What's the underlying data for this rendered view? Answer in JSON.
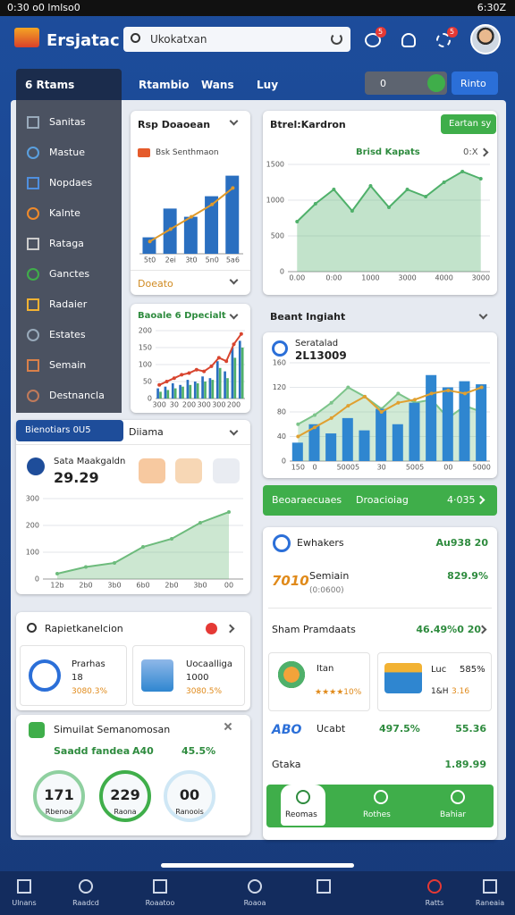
{
  "status": {
    "left": "0:30 o0 lmlso0",
    "right": "6:30Z"
  },
  "header": {
    "app_name": "Ersjatac",
    "search_placeholder": "Ukokatxan",
    "notifications": "5",
    "alerts": "5"
  },
  "nav": {
    "menu": "6 Rtams",
    "tabs": [
      "Rtambio",
      "Wans",
      "Luy"
    ],
    "toggle": "0",
    "action": "Rinto"
  },
  "sidebar": [
    "Sanitas",
    "Mastue",
    "Nopdaes",
    "Kalnte",
    "Rataga",
    "Ganctes",
    "Radaier",
    "Estates",
    "Semain",
    "Destnancla"
  ],
  "report_card": {
    "footer": "Doeato"
  },
  "trend_card": {
    "button": "Eartan sy",
    "range": "0:X"
  },
  "insight": {
    "heading": "Beant Ingiaht"
  },
  "summary_tabs": {
    "active": "Bienotiars 0U5",
    "other": "Diiama"
  },
  "banner": {
    "left": "Beoaraecuaes",
    "middle": "Droacioiag",
    "right": "4·035"
  },
  "list_card": {
    "header_label": "Ewhakers",
    "header_value": "Au938 20",
    "code": "7010",
    "item_name": "Semiain",
    "item_sub": "(0:0600)",
    "item_value": "829.9%",
    "section": "Sham Pramdaats",
    "section_value": "46.49%0 20",
    "tiles": [
      {
        "name": "Itan",
        "rating": "★★★★10%"
      },
      {
        "name": "Luc",
        "percent": "585%",
        "code": "1&H",
        "value": "3.16"
      }
    ],
    "brand": "ABO",
    "brand_name": "Ucabt",
    "brand_percent": "497.5%",
    "brand_value": "55.36",
    "total_label": "Gtaka",
    "total_value": "1.89.99",
    "actions": [
      "Reomas",
      "Rothes",
      "Bahiar"
    ]
  },
  "product_card": {
    "title": "Rapietkanelcion",
    "tiles": [
      {
        "name": "Prarhas",
        "count": "18",
        "change": "3080.3%"
      },
      {
        "name": "Uocaalliga",
        "count": "1000",
        "change": "3080.5%"
      }
    ]
  },
  "sim_card": {
    "title": "Simuilat Semanomosan",
    "metric": "Saadd fandea",
    "metric_value": "A40",
    "metric_percent": "45.5%",
    "gauges": [
      {
        "value": "171",
        "label": "Rbenoa"
      },
      {
        "value": "229",
        "label": "Raona"
      },
      {
        "value": "00",
        "label": "Ranoois"
      }
    ]
  },
  "bottom_nav": [
    "Ulnans",
    "Raadcd",
    "Roaatoo",
    "Roaoa",
    "Ratts",
    "Raneaia"
  ],
  "chart_data": [
    {
      "type": "combo",
      "title": "Rsp Doaoean",
      "subtitle": "Bsk Senthmaon",
      "categories": [
        "5t0",
        "2ei",
        "3t0",
        "5n0",
        "5a6"
      ],
      "series": [
        {
          "type": "bar",
          "color": "#2a6fc0",
          "values": [
            20,
            55,
            45,
            70,
            95
          ]
        },
        {
          "type": "line",
          "color": "#e09a2a",
          "values": [
            15,
            30,
            45,
            60,
            80
          ]
        }
      ],
      "ylim": [
        0,
        100
      ]
    },
    {
      "type": "combo",
      "title": "Btrel:Kardron",
      "subtitle": "Brisd Kapats",
      "categories": [
        "0.00",
        null,
        "0:00",
        null,
        "1000",
        null,
        "3000",
        null,
        "4000",
        null,
        "3000"
      ],
      "series": [
        {
          "type": "area",
          "color": "#4fb06a",
          "values": [
            700,
            950,
            1150,
            850,
            1200,
            900,
            1150,
            1050,
            1250,
            1400,
            1300
          ]
        }
      ],
      "ylim": [
        0,
        1500
      ],
      "yticks": [
        0,
        500,
        1000,
        1500
      ]
    },
    {
      "type": "combo",
      "title": "Baoale 6 Dpecialt",
      "categories": [
        "300",
        null,
        "30",
        null,
        "200",
        null,
        "300",
        null,
        "300",
        null,
        "200",
        null
      ],
      "series": [
        {
          "type": "bar",
          "color": "#2a6fc0",
          "values": [
            30,
            35,
            45,
            40,
            55,
            50,
            65,
            60,
            110,
            80,
            150,
            170
          ]
        },
        {
          "type": "bar",
          "color": "#4fb06a",
          "values": [
            20,
            25,
            30,
            35,
            40,
            45,
            50,
            55,
            90,
            60,
            120,
            150
          ]
        },
        {
          "type": "line",
          "color": "#d8452f",
          "values": [
            40,
            50,
            60,
            70,
            75,
            85,
            80,
            95,
            120,
            110,
            160,
            190
          ]
        }
      ],
      "ylim": [
        0,
        200
      ],
      "yticks": [
        0,
        50,
        100,
        150,
        200
      ]
    },
    {
      "type": "combo",
      "title": "Seratalad",
      "value": "2L13009",
      "categories": [
        "150",
        "0",
        null,
        "50005",
        null,
        "30",
        null,
        "5005",
        null,
        "00",
        null,
        "5000"
      ],
      "series": [
        {
          "type": "area",
          "color": "#7cc48a",
          "values": [
            60,
            75,
            95,
            120,
            105,
            85,
            110,
            95,
            100,
            70,
            90,
            80
          ]
        },
        {
          "type": "bar",
          "color": "#2f86d0",
          "values": [
            30,
            60,
            45,
            70,
            50,
            85,
            60,
            95,
            140,
            120,
            130,
            125
          ]
        },
        {
          "type": "line",
          "color": "#e0a030",
          "values": [
            40,
            55,
            70,
            90,
            105,
            80,
            95,
            100,
            110,
            115,
            110,
            120
          ]
        }
      ],
      "ylim": [
        0,
        160
      ],
      "yticks": [
        0,
        40,
        80,
        120,
        160
      ]
    },
    {
      "type": "combo",
      "title": "Sata Maakgaldn",
      "value": "29.29",
      "categories": [
        "12b",
        "2b0",
        "3b0",
        "6b0",
        "2b0",
        "3b0",
        "00"
      ],
      "series": [
        {
          "type": "area",
          "color": "#6dbb7c",
          "values": [
            20,
            45,
            60,
            120,
            150,
            210,
            250
          ]
        }
      ],
      "ylim": [
        0,
        300
      ],
      "yticks": [
        0,
        100,
        200,
        300
      ]
    }
  ]
}
